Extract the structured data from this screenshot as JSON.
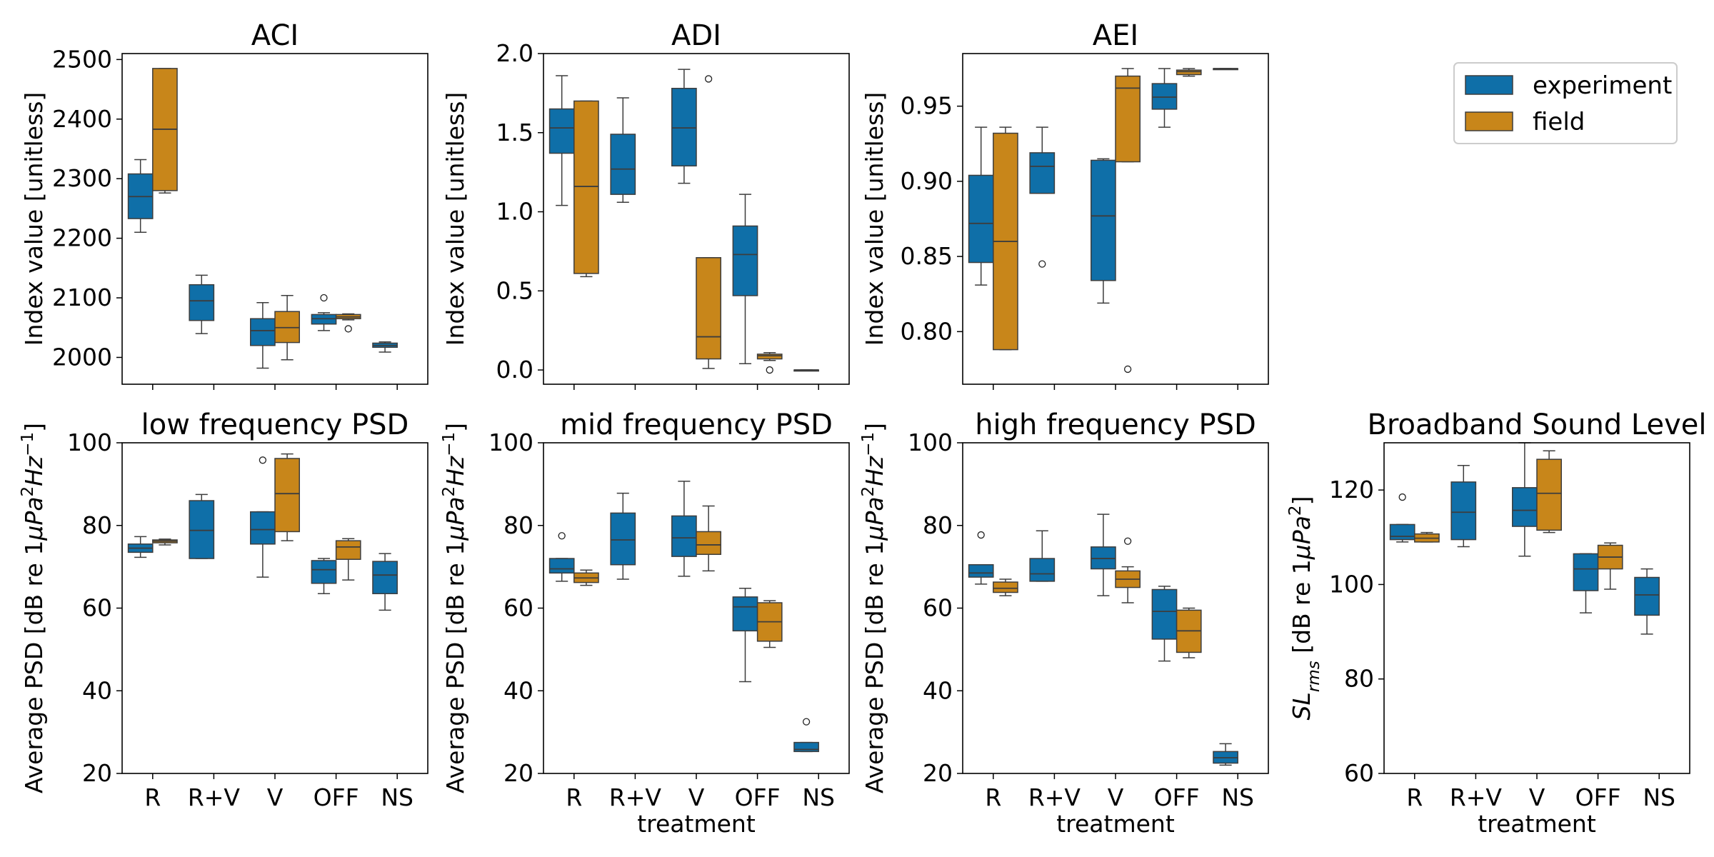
{
  "colors": {
    "experiment": "#0f6fa8",
    "field": "#c8861a",
    "frame": "#000000",
    "whisker": "#3d3d3d"
  },
  "legend": {
    "placement": "top-right",
    "entries": [
      {
        "key": "experiment",
        "label": "experiment"
      },
      {
        "key": "field",
        "label": "field"
      }
    ]
  },
  "chart_data": [
    {
      "type": "box",
      "id": "aci",
      "title": "ACI",
      "ylabel": "Index value [unitless]",
      "xlabel": "",
      "ylim": [
        1955,
        2510
      ],
      "yticks": [
        2000,
        2100,
        2200,
        2300,
        2400,
        2500
      ],
      "ytick_labels": [
        "2000",
        "2100",
        "2200",
        "2300",
        "2400",
        "2500"
      ],
      "categories": [
        "R",
        "R+V",
        "V",
        "OFF",
        "NS"
      ],
      "show_xtick_labels": false,
      "series": [
        {
          "name": "experiment",
          "boxes": [
            {
              "cat": 0,
              "q1": 2233,
              "median": 2270,
              "q3": 2308,
              "lo": 2210,
              "hi": 2332,
              "outliers": []
            },
            {
              "cat": 1,
              "q1": 2062,
              "median": 2095,
              "q3": 2122,
              "lo": 2040,
              "hi": 2138,
              "outliers": []
            },
            {
              "cat": 2,
              "q1": 2020,
              "median": 2045,
              "q3": 2065,
              "lo": 1982,
              "hi": 2092,
              "outliers": []
            },
            {
              "cat": 3,
              "q1": 2056,
              "median": 2065,
              "q3": 2072,
              "lo": 2045,
              "hi": 2075,
              "outliers": [
                2100
              ]
            },
            {
              "cat": 4,
              "q1": 2017,
              "median": 2020,
              "q3": 2024,
              "lo": 2009,
              "hi": 2026,
              "outliers": []
            }
          ]
        },
        {
          "name": "field",
          "boxes": [
            {
              "cat": 0,
              "q1": 2280,
              "median": 2383,
              "q3": 2485,
              "lo": 2276,
              "hi": 2485,
              "outliers": []
            },
            {
              "cat": 2,
              "q1": 2025,
              "median": 2050,
              "q3": 2077,
              "lo": 1996,
              "hi": 2104,
              "outliers": []
            },
            {
              "cat": 3,
              "q1": 2065,
              "median": 2068,
              "q3": 2072,
              "lo": 2063,
              "hi": 2073,
              "outliers": [
                2048
              ]
            }
          ]
        }
      ]
    },
    {
      "type": "box",
      "id": "adi",
      "title": "ADI",
      "ylabel": "Index value [unitless]",
      "xlabel": "",
      "ylim": [
        -0.09,
        2.0
      ],
      "yticks": [
        0.0,
        0.5,
        1.0,
        1.5,
        2.0
      ],
      "ytick_labels": [
        "0.0",
        "0.5",
        "1.0",
        "1.5",
        "2.0"
      ],
      "categories": [
        "R",
        "R+V",
        "V",
        "OFF",
        "NS"
      ],
      "show_xtick_labels": false,
      "series": [
        {
          "name": "experiment",
          "boxes": [
            {
              "cat": 0,
              "q1": 1.37,
              "median": 1.53,
              "q3": 1.65,
              "lo": 1.04,
              "hi": 1.86,
              "outliers": []
            },
            {
              "cat": 1,
              "q1": 1.11,
              "median": 1.27,
              "q3": 1.49,
              "lo": 1.06,
              "hi": 1.72,
              "outliers": []
            },
            {
              "cat": 2,
              "q1": 1.29,
              "median": 1.53,
              "q3": 1.78,
              "lo": 1.18,
              "hi": 1.9,
              "outliers": []
            },
            {
              "cat": 3,
              "q1": 0.47,
              "median": 0.73,
              "q3": 0.91,
              "lo": 0.04,
              "hi": 1.11,
              "outliers": []
            },
            {
              "cat": 4,
              "q1": 0.0,
              "median": 0.0,
              "q3": 0.0,
              "lo": 0.0,
              "hi": 0.0,
              "outliers": []
            }
          ]
        },
        {
          "name": "field",
          "boxes": [
            {
              "cat": 0,
              "q1": 0.61,
              "median": 1.16,
              "q3": 1.7,
              "lo": 0.59,
              "hi": 1.7,
              "outliers": []
            },
            {
              "cat": 2,
              "q1": 0.07,
              "median": 0.21,
              "q3": 0.71,
              "lo": 0.01,
              "hi": 0.71,
              "outliers": [
                1.84
              ]
            },
            {
              "cat": 3,
              "q1": 0.07,
              "median": 0.09,
              "q3": 0.1,
              "lo": 0.06,
              "hi": 0.11,
              "outliers": [
                0.0
              ]
            }
          ]
        }
      ]
    },
    {
      "type": "box",
      "id": "aei",
      "title": "AEI",
      "ylabel": "Index value [unitless]",
      "xlabel": "",
      "ylim": [
        0.765,
        0.985
      ],
      "yticks": [
        0.8,
        0.85,
        0.9,
        0.95
      ],
      "ytick_labels": [
        "0.80",
        "0.85",
        "0.90",
        "0.95"
      ],
      "categories": [
        "R",
        "R+V",
        "V",
        "OFF",
        "NS"
      ],
      "show_xtick_labels": false,
      "series": [
        {
          "name": "experiment",
          "boxes": [
            {
              "cat": 0,
              "q1": 0.846,
              "median": 0.872,
              "q3": 0.904,
              "lo": 0.831,
              "hi": 0.936,
              "outliers": []
            },
            {
              "cat": 1,
              "q1": 0.892,
              "median": 0.91,
              "q3": 0.919,
              "lo": 0.892,
              "hi": 0.936,
              "outliers": [
                0.845
              ]
            },
            {
              "cat": 2,
              "q1": 0.834,
              "median": 0.877,
              "q3": 0.914,
              "lo": 0.819,
              "hi": 0.915,
              "outliers": []
            },
            {
              "cat": 3,
              "q1": 0.948,
              "median": 0.956,
              "q3": 0.965,
              "lo": 0.936,
              "hi": 0.975,
              "outliers": []
            },
            {
              "cat": 4,
              "q1": 0.975,
              "median": 0.975,
              "q3": 0.975,
              "lo": 0.975,
              "hi": 0.975,
              "outliers": []
            }
          ]
        },
        {
          "name": "field",
          "boxes": [
            {
              "cat": 0,
              "q1": 0.788,
              "median": 0.86,
              "q3": 0.932,
              "lo": 0.788,
              "hi": 0.936,
              "outliers": []
            },
            {
              "cat": 2,
              "q1": 0.913,
              "median": 0.962,
              "q3": 0.97,
              "lo": 0.913,
              "hi": 0.975,
              "outliers": [
                0.775
              ]
            },
            {
              "cat": 3,
              "q1": 0.971,
              "median": 0.973,
              "q3": 0.974,
              "lo": 0.97,
              "hi": 0.975,
              "outliers": []
            }
          ]
        }
      ]
    },
    {
      "type": "box",
      "id": "low-psd",
      "title": "low frequency PSD",
      "ylabel": "Average PSD [dB re 1μPa²Hz⁻¹]",
      "xlabel": "",
      "ylim": [
        20,
        100
      ],
      "yticks": [
        20,
        40,
        60,
        80,
        100
      ],
      "ytick_labels": [
        "20",
        "40",
        "60",
        "80",
        "100"
      ],
      "categories": [
        "R",
        "R+V",
        "V",
        "OFF",
        "NS"
      ],
      "show_xtick_labels": true,
      "series": [
        {
          "name": "experiment",
          "boxes": [
            {
              "cat": 0,
              "q1": 73.5,
              "median": 74.5,
              "q3": 75.5,
              "lo": 72.3,
              "hi": 77.3,
              "outliers": []
            },
            {
              "cat": 1,
              "q1": 72.0,
              "median": 78.8,
              "q3": 86.0,
              "lo": 72.0,
              "hi": 87.5,
              "outliers": []
            },
            {
              "cat": 2,
              "q1": 75.5,
              "median": 79.0,
              "q3": 83.3,
              "lo": 67.5,
              "hi": 83.3,
              "outliers": [
                95.8
              ]
            },
            {
              "cat": 3,
              "q1": 66.0,
              "median": 69.3,
              "q3": 71.5,
              "lo": 63.5,
              "hi": 72.0,
              "outliers": []
            },
            {
              "cat": 4,
              "q1": 63.5,
              "median": 68.0,
              "q3": 71.3,
              "lo": 59.5,
              "hi": 73.2,
              "outliers": []
            }
          ]
        },
        {
          "name": "field",
          "boxes": [
            {
              "cat": 0,
              "q1": 75.8,
              "median": 76.2,
              "q3": 76.5,
              "lo": 75.3,
              "hi": 76.7,
              "outliers": []
            },
            {
              "cat": 2,
              "q1": 78.5,
              "median": 87.7,
              "q3": 96.2,
              "lo": 76.3,
              "hi": 97.3,
              "outliers": []
            },
            {
              "cat": 3,
              "q1": 71.8,
              "median": 74.8,
              "q3": 76.3,
              "lo": 66.8,
              "hi": 76.8,
              "outliers": []
            }
          ]
        }
      ]
    },
    {
      "type": "box",
      "id": "mid-psd",
      "title": "mid frequency PSD",
      "ylabel": "Average PSD [dB re 1μPa²Hz⁻¹]",
      "xlabel": "treatment",
      "ylim": [
        20,
        100
      ],
      "yticks": [
        20,
        40,
        60,
        80,
        100
      ],
      "ytick_labels": [
        "20",
        "40",
        "60",
        "80",
        "100"
      ],
      "categories": [
        "R",
        "R+V",
        "V",
        "OFF",
        "NS"
      ],
      "show_xtick_labels": true,
      "series": [
        {
          "name": "experiment",
          "boxes": [
            {
              "cat": 0,
              "q1": 68.5,
              "median": 69.5,
              "q3": 72.0,
              "lo": 66.5,
              "hi": 72.0,
              "outliers": [
                77.5
              ]
            },
            {
              "cat": 1,
              "q1": 70.5,
              "median": 76.5,
              "q3": 83.0,
              "lo": 67.0,
              "hi": 87.8,
              "outliers": []
            },
            {
              "cat": 2,
              "q1": 72.5,
              "median": 77.0,
              "q3": 82.3,
              "lo": 67.7,
              "hi": 90.7,
              "outliers": []
            },
            {
              "cat": 3,
              "q1": 54.5,
              "median": 60.3,
              "q3": 62.7,
              "lo": 42.2,
              "hi": 64.8,
              "outliers": []
            },
            {
              "cat": 4,
              "q1": 25.3,
              "median": 25.8,
              "q3": 27.5,
              "lo": 25.3,
              "hi": 27.5,
              "outliers": [
                32.5
              ]
            }
          ]
        },
        {
          "name": "field",
          "boxes": [
            {
              "cat": 0,
              "q1": 66.2,
              "median": 67.3,
              "q3": 68.5,
              "lo": 65.5,
              "hi": 69.2,
              "outliers": []
            },
            {
              "cat": 2,
              "q1": 73.0,
              "median": 75.3,
              "q3": 78.5,
              "lo": 69.0,
              "hi": 84.7,
              "outliers": []
            },
            {
              "cat": 3,
              "q1": 52.0,
              "median": 56.7,
              "q3": 61.3,
              "lo": 50.5,
              "hi": 61.8,
              "outliers": []
            }
          ]
        }
      ]
    },
    {
      "type": "box",
      "id": "high-psd",
      "title": "high frequency PSD",
      "ylabel": "Average PSD [dB re 1μPa²Hz⁻¹]",
      "xlabel": "treatment",
      "ylim": [
        20,
        100
      ],
      "yticks": [
        20,
        40,
        60,
        80,
        100
      ],
      "ytick_labels": [
        "20",
        "40",
        "60",
        "80",
        "100"
      ],
      "categories": [
        "R",
        "R+V",
        "V",
        "OFF",
        "NS"
      ],
      "show_xtick_labels": true,
      "series": [
        {
          "name": "experiment",
          "boxes": [
            {
              "cat": 0,
              "q1": 67.5,
              "median": 68.5,
              "q3": 70.5,
              "lo": 65.8,
              "hi": 70.5,
              "outliers": [
                77.7
              ]
            },
            {
              "cat": 1,
              "q1": 66.5,
              "median": 68.3,
              "q3": 72.0,
              "lo": 66.5,
              "hi": 78.7,
              "outliers": []
            },
            {
              "cat": 2,
              "q1": 69.5,
              "median": 72.0,
              "q3": 74.8,
              "lo": 63.0,
              "hi": 82.7,
              "outliers": []
            },
            {
              "cat": 3,
              "q1": 52.5,
              "median": 59.2,
              "q3": 64.5,
              "lo": 47.2,
              "hi": 65.3,
              "outliers": []
            },
            {
              "cat": 4,
              "q1": 22.5,
              "median": 23.8,
              "q3": 25.3,
              "lo": 22.0,
              "hi": 27.2,
              "outliers": []
            }
          ]
        },
        {
          "name": "field",
          "boxes": [
            {
              "cat": 0,
              "q1": 63.8,
              "median": 64.8,
              "q3": 66.3,
              "lo": 63.0,
              "hi": 67.0,
              "outliers": []
            },
            {
              "cat": 2,
              "q1": 65.0,
              "median": 67.0,
              "q3": 69.0,
              "lo": 61.3,
              "hi": 70.0,
              "outliers": [
                76.2
              ]
            },
            {
              "cat": 3,
              "q1": 49.3,
              "median": 54.5,
              "q3": 59.5,
              "lo": 48.0,
              "hi": 60.0,
              "outliers": []
            }
          ]
        }
      ]
    },
    {
      "type": "box",
      "id": "broadband",
      "title": "Broadband Sound Level",
      "ylabel": "SLrms [dB re 1μPa²]",
      "xlabel": "treatment",
      "ylim": [
        60,
        130
      ],
      "yticks": [
        60,
        80,
        100,
        120
      ],
      "ytick_labels": [
        "60",
        "80",
        "100",
        "120"
      ],
      "categories": [
        "R",
        "R+V",
        "V",
        "OFF",
        "NS"
      ],
      "show_xtick_labels": true,
      "series": [
        {
          "name": "experiment",
          "boxes": [
            {
              "cat": 0,
              "q1": 109.5,
              "median": 110.2,
              "q3": 112.7,
              "lo": 109.0,
              "hi": 112.7,
              "outliers": [
                118.5
              ]
            },
            {
              "cat": 1,
              "q1": 109.5,
              "median": 115.3,
              "q3": 121.7,
              "lo": 108.0,
              "hi": 125.2,
              "outliers": []
            },
            {
              "cat": 2,
              "q1": 112.3,
              "median": 115.7,
              "q3": 120.5,
              "lo": 106.0,
              "hi": 130.0,
              "outliers": []
            },
            {
              "cat": 3,
              "q1": 98.7,
              "median": 103.3,
              "q3": 106.5,
              "lo": 94.0,
              "hi": 106.5,
              "outliers": []
            },
            {
              "cat": 4,
              "q1": 93.5,
              "median": 97.8,
              "q3": 101.5,
              "lo": 89.5,
              "hi": 103.3,
              "outliers": []
            }
          ]
        },
        {
          "name": "field",
          "boxes": [
            {
              "cat": 0,
              "q1": 109.0,
              "median": 109.8,
              "q3": 110.7,
              "lo": 109.0,
              "hi": 111.0,
              "outliers": []
            },
            {
              "cat": 2,
              "q1": 111.5,
              "median": 119.3,
              "q3": 126.5,
              "lo": 111.0,
              "hi": 128.3,
              "outliers": []
            },
            {
              "cat": 3,
              "q1": 103.3,
              "median": 105.8,
              "q3": 108.3,
              "lo": 99.0,
              "hi": 108.8,
              "outliers": []
            }
          ]
        }
      ]
    }
  ]
}
